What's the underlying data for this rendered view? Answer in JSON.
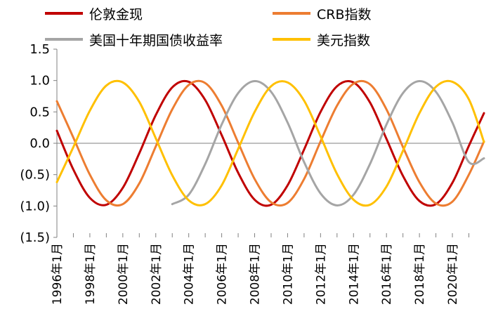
{
  "chart_data": {
    "type": "line",
    "title": "",
    "xlabel": "",
    "ylabel": "",
    "ylim": [
      -1.5,
      1.5
    ],
    "xlim": [
      "1996-01",
      "2021-12"
    ],
    "y_ticks": [
      1.5,
      1.0,
      0.5,
      0.0,
      -0.5,
      -1.0,
      -1.5
    ],
    "y_tick_labels": [
      "1.5",
      "1.0",
      "0.5",
      "0.0",
      "(0.5)",
      "(1.0)",
      "(1.5)"
    ],
    "x_tick_labels": [
      "1996年1月",
      "1998年1月",
      "2000年1月",
      "2002年1月",
      "2004年1月",
      "2006年1月",
      "2008年1月",
      "2010年1月",
      "2012年1月",
      "2014年1月",
      "2016年1月",
      "2018年1月",
      "2020年1月"
    ],
    "grid": false,
    "legend": "top",
    "series": [
      {
        "name": "伦敦金现",
        "color": "#C00000",
        "x": [
          "1996-01",
          "1997-01",
          "1998-01",
          "1999-01",
          "2000-01",
          "2001-01",
          "2002-01",
          "2003-01",
          "2004-01",
          "2005-01",
          "2006-01",
          "2007-01",
          "2008-01",
          "2009-01",
          "2010-01",
          "2011-01",
          "2012-01",
          "2013-01",
          "2014-01",
          "2015-01",
          "2016-01",
          "2017-01",
          "2018-01",
          "2019-01",
          "2020-01",
          "2021-01",
          "2021-12"
        ],
        "values": [
          0.2,
          -0.42,
          -0.87,
          -0.98,
          -0.71,
          -0.16,
          0.45,
          0.89,
          0.98,
          0.69,
          0.13,
          -0.47,
          -0.9,
          -0.98,
          -0.67,
          -0.1,
          0.5,
          0.91,
          0.97,
          0.65,
          0.07,
          -0.52,
          -0.92,
          -0.97,
          -0.63,
          -0.04,
          0.48
        ]
      },
      {
        "name": "CRB指数",
        "color": "#ED7D31",
        "x": [
          "1996-01",
          "1997-01",
          "1998-01",
          "1999-01",
          "2000-01",
          "2001-01",
          "2002-01",
          "2003-01",
          "2004-01",
          "2005-01",
          "2006-01",
          "2007-01",
          "2008-01",
          "2009-01",
          "2010-01",
          "2011-01",
          "2012-01",
          "2013-01",
          "2014-01",
          "2015-01",
          "2016-01",
          "2017-01",
          "2018-01",
          "2019-01",
          "2020-01",
          "2021-01",
          "2021-12"
        ],
        "values": [
          0.67,
          0.09,
          -0.5,
          -0.91,
          -0.97,
          -0.64,
          -0.05,
          0.54,
          0.93,
          0.96,
          0.6,
          0.01,
          -0.57,
          -0.94,
          -0.95,
          -0.57,
          0.03,
          0.6,
          0.95,
          0.94,
          0.54,
          -0.06,
          -0.62,
          -0.96,
          -0.93,
          -0.5,
          0.03
        ]
      },
      {
        "name": "美国十年期国债收益率",
        "color": "#A5A5A5",
        "x": [
          "2003-01",
          "2004-01",
          "2005-01",
          "2006-01",
          "2007-01",
          "2008-01",
          "2009-01",
          "2010-01",
          "2011-01",
          "2012-01",
          "2013-01",
          "2014-01",
          "2015-01",
          "2016-01",
          "2017-01",
          "2018-01",
          "2019-01",
          "2020-01",
          "2021-01",
          "2021-12"
        ],
        "values": [
          -0.97,
          -0.82,
          -0.33,
          0.3,
          0.8,
          0.99,
          0.82,
          0.33,
          -0.3,
          -0.8,
          -0.99,
          -0.82,
          -0.33,
          0.3,
          0.8,
          0.99,
          0.82,
          0.33,
          -0.3,
          -0.24
        ]
      },
      {
        "name": "美元指数",
        "color": "#FFC000",
        "x": [
          "1996-01",
          "1997-01",
          "1998-01",
          "1999-01",
          "2000-01",
          "2001-01",
          "2002-01",
          "2003-01",
          "2004-01",
          "2005-01",
          "2006-01",
          "2007-01",
          "2008-01",
          "2009-01",
          "2010-01",
          "2011-01",
          "2012-01",
          "2013-01",
          "2014-01",
          "2015-01",
          "2016-01",
          "2017-01",
          "2018-01",
          "2019-01",
          "2020-01",
          "2021-01",
          "2021-12"
        ],
        "values": [
          -0.62,
          -0.06,
          0.52,
          0.92,
          0.97,
          0.66,
          0.08,
          -0.51,
          -0.91,
          -0.97,
          -0.67,
          -0.09,
          0.5,
          0.91,
          0.97,
          0.68,
          0.11,
          -0.49,
          -0.9,
          -0.98,
          -0.69,
          -0.12,
          0.48,
          0.9,
          0.98,
          0.7,
          0.02
        ]
      }
    ]
  }
}
